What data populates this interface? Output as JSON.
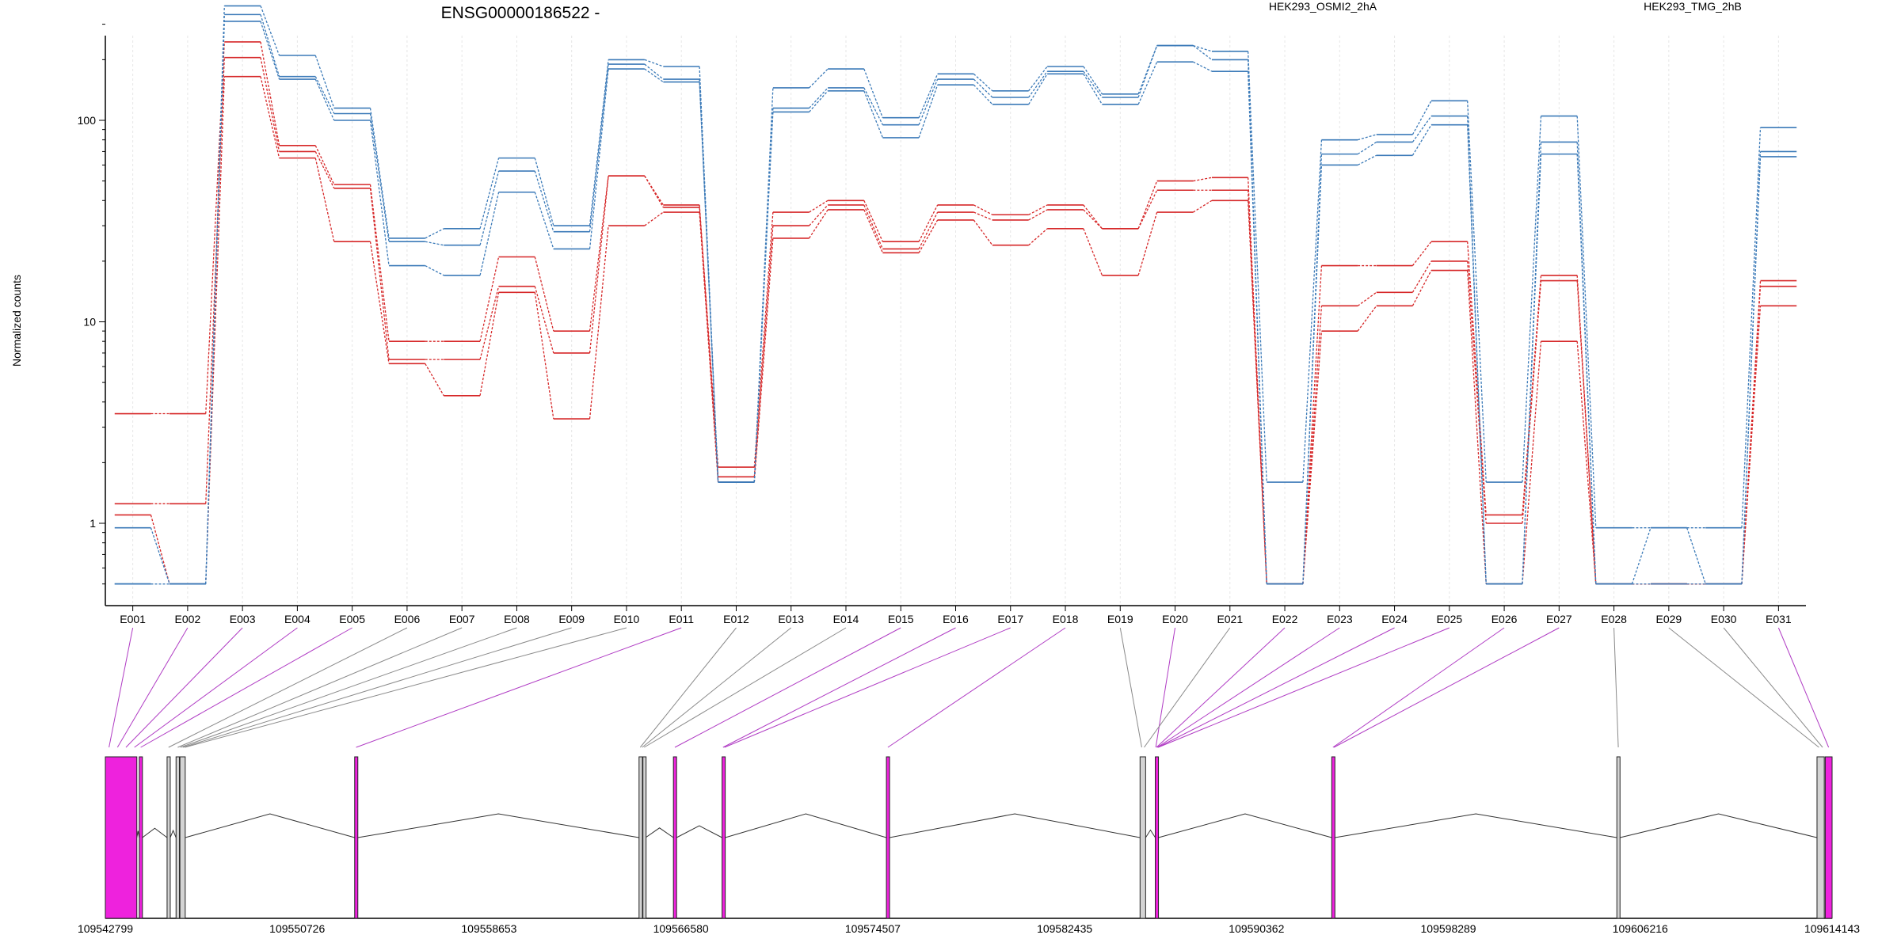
{
  "chart_data": {
    "type": "line",
    "title": "ENSG00000186522 -",
    "ylabel": "Normalized counts",
    "yscale": "log",
    "ylim": [
      0.5,
      500
    ],
    "yticks": [
      1,
      10,
      100
    ],
    "categories": [
      "E001",
      "E002",
      "E003",
      "E004",
      "E005",
      "E006",
      "E007",
      "E008",
      "E009",
      "E010",
      "E011",
      "E012",
      "E013",
      "E014",
      "E015",
      "E016",
      "E017",
      "E018",
      "E019",
      "E020",
      "E021",
      "E022",
      "E023",
      "E024",
      "E025",
      "E026",
      "E027",
      "E028",
      "E029",
      "E030",
      "E031"
    ],
    "legend": [
      {
        "label": "HEK293_OSMI2_2hA",
        "color": "#d62728"
      },
      {
        "label": "HEK293_TMG_2hB",
        "color": "#3b7ab8"
      }
    ],
    "series": [
      {
        "group": 0,
        "color": "#d62728",
        "values": [
          3.5,
          3.5,
          245,
          75,
          48,
          8,
          8,
          21,
          9,
          53,
          38,
          1.9,
          35,
          40,
          25,
          38,
          34,
          38,
          29,
          50,
          52,
          0.5,
          19,
          19,
          25,
          1.1,
          17,
          0.5,
          0.5,
          0.5,
          16
        ]
      },
      {
        "group": 0,
        "color": "#d62728",
        "values": [
          1.25,
          1.25,
          205,
          70,
          46,
          6.5,
          6.5,
          15,
          7,
          53,
          37,
          1.7,
          30,
          38,
          23,
          35,
          32,
          36,
          29,
          45,
          45,
          0.5,
          12,
          14,
          20,
          1.0,
          16,
          0.5,
          0.5,
          0.5,
          15
        ]
      },
      {
        "group": 0,
        "color": "#d62728",
        "values": [
          1.1,
          0.5,
          165,
          65,
          25,
          6.2,
          4.3,
          14,
          3.3,
          30,
          35,
          1.6,
          26,
          36,
          22,
          32,
          24,
          29,
          17,
          35,
          40,
          0.5,
          9,
          12,
          18,
          0.5,
          8,
          0.5,
          0.5,
          0.5,
          12
        ]
      },
      {
        "group": 1,
        "color": "#3b7ab8",
        "values": [
          0.5,
          0.5,
          370,
          210,
          115,
          26,
          29,
          65,
          30,
          200,
          185,
          1.6,
          145,
          180,
          103,
          170,
          140,
          185,
          135,
          235,
          220,
          1.6,
          80,
          85,
          125,
          1.6,
          105,
          0.95,
          0.95,
          0.95,
          92
        ]
      },
      {
        "group": 1,
        "color": "#3b7ab8",
        "values": [
          0.95,
          0.5,
          335,
          165,
          108,
          25,
          24,
          56,
          28,
          190,
          160,
          1.6,
          115,
          145,
          95,
          160,
          130,
          175,
          130,
          235,
          200,
          0.5,
          68,
          78,
          105,
          0.5,
          78,
          0.5,
          0.95,
          0.5,
          70
        ]
      },
      {
        "group": 1,
        "color": "#3b7ab8",
        "values": [
          0.5,
          0.5,
          310,
          160,
          100,
          19,
          17,
          44,
          23,
          180,
          155,
          1.6,
          110,
          140,
          82,
          150,
          120,
          170,
          120,
          195,
          175,
          0.5,
          60,
          67,
          95,
          0.5,
          68,
          0.5,
          0.5,
          0.5,
          66
        ]
      }
    ],
    "gene_track": {
      "coordinate_labels": [
        "109542799",
        "109550726",
        "109558653",
        "109566580",
        "109574507",
        "109582435",
        "109590362",
        "109598289",
        "109606216",
        "109614143"
      ],
      "exons": [
        {
          "start": 109542799,
          "end": 109544100,
          "color": "#ee22dd"
        },
        {
          "start": 109544200,
          "end": 109544330,
          "color": "#ee22dd"
        },
        {
          "start": 109545350,
          "end": 109545480,
          "color": "#d3d3d3"
        },
        {
          "start": 109545720,
          "end": 109545860,
          "color": "#d3d3d3"
        },
        {
          "start": 109545880,
          "end": 109546100,
          "color": "#d3d3d3"
        },
        {
          "start": 109553100,
          "end": 109553230,
          "color": "#ee22dd"
        },
        {
          "start": 109564850,
          "end": 109564990,
          "color": "#d3d3d3"
        },
        {
          "start": 109565010,
          "end": 109565120,
          "color": "#d3d3d3"
        },
        {
          "start": 109566270,
          "end": 109566400,
          "color": "#ee22dd"
        },
        {
          "start": 109568280,
          "end": 109568410,
          "color": "#ee22dd"
        },
        {
          "start": 109575070,
          "end": 109575200,
          "color": "#ee22dd"
        },
        {
          "start": 109585550,
          "end": 109585780,
          "color": "#d3d3d3"
        },
        {
          "start": 109586180,
          "end": 109586310,
          "color": "#ee22dd"
        },
        {
          "start": 109593470,
          "end": 109593600,
          "color": "#ee22dd"
        },
        {
          "start": 109605250,
          "end": 109605380,
          "color": "#d3d3d3"
        },
        {
          "start": 109613520,
          "end": 109613820,
          "color": "#d3d3d3"
        },
        {
          "start": 109613860,
          "end": 109614143,
          "color": "#ee22dd"
        }
      ],
      "exon_links": [
        {
          "bin": "E001",
          "pos": 109542950,
          "highlight": true
        },
        {
          "bin": "E002",
          "pos": 109543300,
          "highlight": true
        },
        {
          "bin": "E003",
          "pos": 109543650,
          "highlight": true
        },
        {
          "bin": "E004",
          "pos": 109544000,
          "highlight": true
        },
        {
          "bin": "E005",
          "pos": 109544260,
          "highlight": true
        },
        {
          "bin": "E006",
          "pos": 109545410,
          "highlight": false
        },
        {
          "bin": "E007",
          "pos": 109545790,
          "highlight": false
        },
        {
          "bin": "E008",
          "pos": 109545900,
          "highlight": false
        },
        {
          "bin": "E009",
          "pos": 109546000,
          "highlight": false
        },
        {
          "bin": "E010",
          "pos": 109546080,
          "highlight": false
        },
        {
          "bin": "E011",
          "pos": 109553160,
          "highlight": true
        },
        {
          "bin": "E012",
          "pos": 109564900,
          "highlight": false
        },
        {
          "bin": "E013",
          "pos": 109564980,
          "highlight": false
        },
        {
          "bin": "E014",
          "pos": 109565060,
          "highlight": false
        },
        {
          "bin": "E015",
          "pos": 109566330,
          "highlight": true
        },
        {
          "bin": "E016",
          "pos": 109568320,
          "highlight": true
        },
        {
          "bin": "E017",
          "pos": 109568380,
          "highlight": true
        },
        {
          "bin": "E018",
          "pos": 109575130,
          "highlight": true
        },
        {
          "bin": "E019",
          "pos": 109585620,
          "highlight": false
        },
        {
          "bin": "E020",
          "pos": 109586200,
          "highlight": true
        },
        {
          "bin": "E021",
          "pos": 109585720,
          "highlight": false
        },
        {
          "bin": "E022",
          "pos": 109586230,
          "highlight": true
        },
        {
          "bin": "E023",
          "pos": 109586260,
          "highlight": true
        },
        {
          "bin": "E024",
          "pos": 109586280,
          "highlight": true
        },
        {
          "bin": "E025",
          "pos": 109586300,
          "highlight": true
        },
        {
          "bin": "E026",
          "pos": 109593520,
          "highlight": true
        },
        {
          "bin": "E027",
          "pos": 109593560,
          "highlight": true
        },
        {
          "bin": "E028",
          "pos": 109605310,
          "highlight": false
        },
        {
          "bin": "E029",
          "pos": 109613600,
          "highlight": false
        },
        {
          "bin": "E030",
          "pos": 109613750,
          "highlight": false
        },
        {
          "bin": "E031",
          "pos": 109614000,
          "highlight": true
        }
      ]
    }
  }
}
